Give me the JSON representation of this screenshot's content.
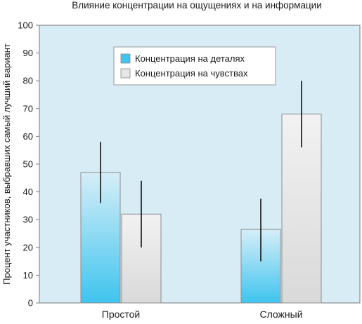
{
  "chart_data": {
    "type": "bar",
    "title": "Влияние концентрации на ощущениях и на информации",
    "xlabel": "",
    "ylabel": "Процент участников, выбравших самый лучший вариант",
    "ylim": [
      0,
      100
    ],
    "yticks": [
      0,
      10,
      20,
      30,
      40,
      50,
      60,
      70,
      80,
      90,
      100
    ],
    "categories": [
      "Простой",
      "Сложный"
    ],
    "series": [
      {
        "name": "Концентрация на деталях",
        "color": "#3fc4ee",
        "values": [
          47,
          26.5
        ],
        "error_low": [
          36,
          15
        ],
        "error_high": [
          58,
          37.5
        ]
      },
      {
        "name": "Концентрация на чувствах",
        "color": "#e6e6e6",
        "values": [
          32,
          68
        ],
        "error_low": [
          20,
          56
        ],
        "error_high": [
          44,
          80
        ]
      }
    ],
    "grid": false,
    "legend_position": "top-right",
    "background_color": "#d8ecf6",
    "axis_color": "#7a7a7a"
  }
}
